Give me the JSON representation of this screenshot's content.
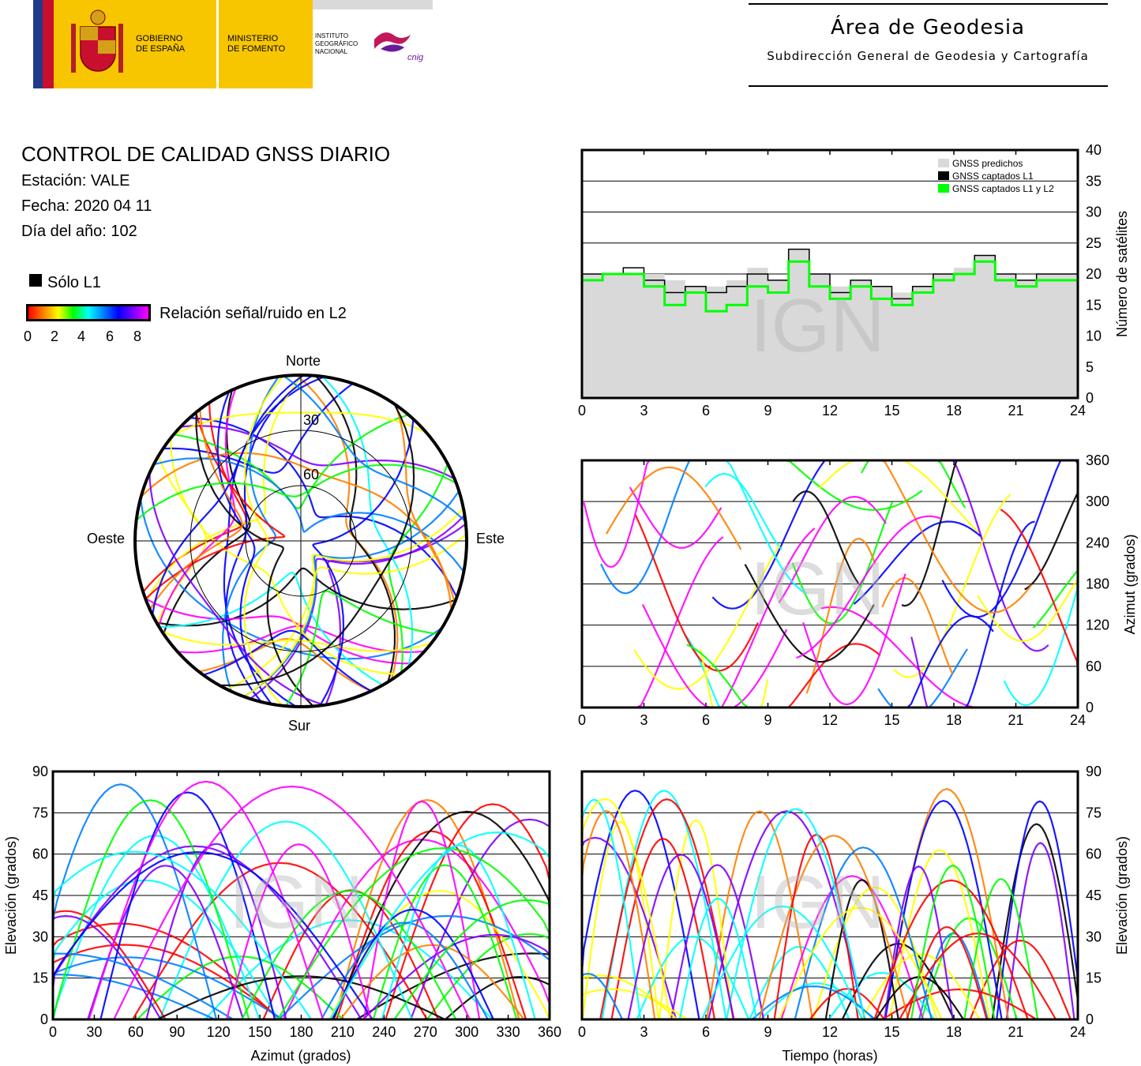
{
  "header": {
    "gov_label": "GOBIERNO\nDE ESPAÑA",
    "gov_line1": "GOBIERNO",
    "gov_line2": "DE ESPAÑA",
    "min_line1": "MINISTERIO",
    "min_line2": "DE FOMENTO",
    "ign_line1": "INSTITUTO",
    "ign_line2": "GEOGRÁFICO",
    "ign_line3": "NACIONAL",
    "cnig": "cnig",
    "area_title": "Área de Geodesia",
    "area_subtitle": "Subdirección General de Geodesia y Cartografía"
  },
  "report": {
    "title": "CONTROL DE CALIDAD GNSS DIARIO",
    "station": "Estación: VALE",
    "date": "Fecha: 2020 04 11",
    "doy": "Día del año: 102"
  },
  "legend": {
    "solo_l1": "Sólo L1",
    "snr_label": "Relación señal/ruido en L2",
    "snr_ticks": [
      "0",
      "2",
      "4",
      "6",
      "8"
    ],
    "snr_colors": [
      "#ff0000",
      "#ff8000",
      "#ffff00",
      "#00ff00",
      "#00ffff",
      "#0080ff",
      "#0000ff",
      "#8000ff",
      "#ff00ff"
    ]
  },
  "watermark": "IGN",
  "chart_data": [
    {
      "id": "satellite-count",
      "type": "area",
      "ylabel": "Número de satélites",
      "xlim": [
        0,
        24
      ],
      "ylim": [
        0,
        40
      ],
      "xticks": [
        "0",
        "3",
        "6",
        "9",
        "12",
        "15",
        "18",
        "21",
        "24"
      ],
      "yticks": [
        "0",
        "5",
        "10",
        "15",
        "20",
        "25",
        "30",
        "35",
        "40"
      ],
      "grid": true,
      "legend_position": "top-right",
      "series": [
        {
          "name": "GNSS predichos",
          "color": "#d9d9d9",
          "x": [
            0,
            1,
            2,
            3,
            4,
            5,
            6,
            7,
            8,
            9,
            10,
            11,
            12,
            13,
            14,
            15,
            16,
            17,
            18,
            19,
            20,
            21,
            22,
            23,
            24
          ],
          "values": [
            20,
            20,
            20,
            20,
            19,
            18,
            18,
            19,
            21,
            19,
            24,
            20,
            18,
            19,
            18,
            17,
            18,
            20,
            21,
            23,
            20,
            19,
            20,
            20,
            20
          ]
        },
        {
          "name": "GNSS captados L1",
          "color": "#000000",
          "x": [
            0,
            1,
            2,
            3,
            4,
            5,
            6,
            7,
            8,
            9,
            10,
            11,
            12,
            13,
            14,
            15,
            16,
            17,
            18,
            19,
            20,
            21,
            22,
            23,
            24
          ],
          "values": [
            20,
            20,
            21,
            19,
            17,
            18,
            17,
            18,
            20,
            19,
            24,
            20,
            17,
            19,
            18,
            16,
            18,
            20,
            20,
            23,
            20,
            19,
            20,
            20,
            19
          ]
        },
        {
          "name": "GNSS captados L1 y L2",
          "color": "#00ff00",
          "x": [
            0,
            1,
            2,
            3,
            4,
            5,
            6,
            7,
            8,
            9,
            10,
            11,
            12,
            13,
            14,
            15,
            16,
            17,
            18,
            19,
            20,
            21,
            22,
            23,
            24
          ],
          "values": [
            19,
            20,
            20,
            18,
            15,
            17,
            14,
            15,
            18,
            17,
            22,
            18,
            16,
            18,
            16,
            15,
            17,
            19,
            20,
            22,
            19,
            18,
            19,
            19,
            18
          ]
        }
      ]
    },
    {
      "id": "skyplot",
      "type": "scatter",
      "directions": {
        "north": "Norte",
        "south": "Sur",
        "east": "Este",
        "west": "Oeste"
      },
      "elevation_rings": [
        "30",
        "60"
      ],
      "description_values": "satellite tracks colored by L2 SNR"
    },
    {
      "id": "azimuth-vs-time",
      "type": "scatter",
      "ylabel": "Azimut (grados)",
      "xlim": [
        0,
        24
      ],
      "ylim": [
        0,
        360
      ],
      "xticks": [
        "0",
        "3",
        "6",
        "9",
        "12",
        "15",
        "18",
        "21",
        "24"
      ],
      "yticks": [
        "0",
        "60",
        "120",
        "180",
        "240",
        "300",
        "360"
      ],
      "grid": true
    },
    {
      "id": "elevation-vs-azimuth",
      "type": "scatter",
      "xlabel": "Azimut (grados)",
      "ylabel": "Elevación (grados)",
      "xlim": [
        0,
        360
      ],
      "ylim": [
        0,
        90
      ],
      "xticks": [
        "0",
        "30",
        "60",
        "90",
        "120",
        "150",
        "180",
        "210",
        "240",
        "270",
        "300",
        "330",
        "360"
      ],
      "yticks": [
        "0",
        "15",
        "30",
        "45",
        "60",
        "75",
        "90"
      ],
      "grid": true
    },
    {
      "id": "elevation-vs-time",
      "type": "scatter",
      "xlabel": "Tiempo (horas)",
      "ylabel": "Elevación (grados)",
      "xlim": [
        0,
        24
      ],
      "ylim": [
        0,
        90
      ],
      "xticks": [
        "0",
        "3",
        "6",
        "9",
        "12",
        "15",
        "18",
        "21",
        "24"
      ],
      "yticks": [
        "0",
        "15",
        "30",
        "45",
        "60",
        "75",
        "90"
      ],
      "grid": true
    }
  ]
}
